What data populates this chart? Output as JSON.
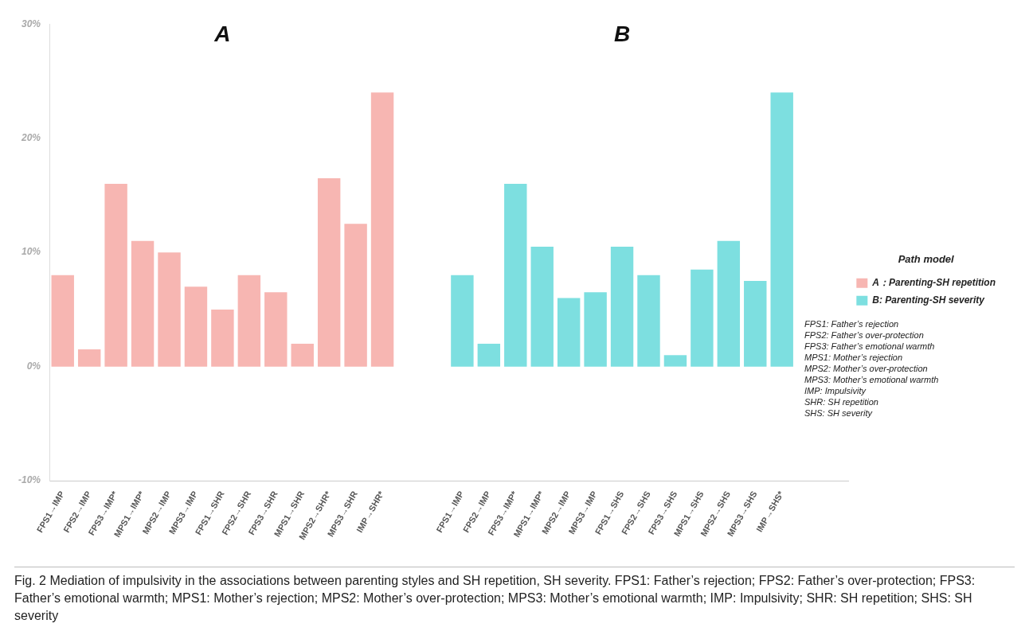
{
  "chart_data": {
    "type": "bar",
    "legend_title": "Path model",
    "legend": "right",
    "categories": [
      "FPS1→IMP",
      "FPS2→IMP",
      "FPS3→IMP*",
      "MPS1→IMP*",
      "MPS2→IMP",
      "MPS3→IMP",
      "FPS1→SHR",
      "FPS2→SHR",
      "FPS3→SHR",
      "MPS1→SHR",
      "MPS2→SHR*",
      "MPS3→SHR",
      "IMP→SHR*",
      null,
      null,
      "FPS1→IMP",
      "FPS2→IMP",
      "FPS3→IMP*",
      "MPS1→IMP*",
      "MPS2→IMP",
      "MPS3→IMP",
      "FPS1→SHS",
      "FPS2→SHS",
      "FPS3→SHS",
      "MPS1→SHS",
      "MPS2→SHS",
      "MPS3→SHS",
      "IMP→SHS*",
      null,
      null
    ],
    "series": [
      {
        "name": "A：Parenting-SH repetition",
        "color": "#f7b6b2",
        "values": [
          8,
          1.5,
          16,
          11,
          10,
          7,
          5,
          8,
          6.5,
          2,
          16.5,
          12.5,
          24,
          null,
          null,
          null,
          null,
          null,
          null,
          null,
          null,
          null,
          null,
          null,
          null,
          null,
          null,
          null,
          null,
          null
        ]
      },
      {
        "name": "B: Parenting-SH severity",
        "color": "#7ddfe0",
        "values": [
          null,
          null,
          null,
          null,
          null,
          null,
          null,
          null,
          null,
          null,
          null,
          null,
          null,
          null,
          null,
          8,
          2,
          16,
          10.5,
          6,
          6.5,
          10.5,
          8,
          1,
          8.5,
          11,
          7.5,
          24,
          null,
          null
        ]
      }
    ],
    "ylim": [
      -10,
      30
    ],
    "yticks": [
      {
        "value": -10,
        "label": "-10%"
      },
      {
        "value": 0,
        "label": "0%"
      },
      {
        "value": 10,
        "label": "10%"
      },
      {
        "value": 20,
        "label": "20%"
      },
      {
        "value": 30,
        "label": "30%"
      }
    ],
    "annotations": [
      "A",
      "B",
      "FPS1: Father’s rejection",
      "FPS2: Father’s over-protection",
      "FPS3: Father’s emotional warmth",
      "MPS1: Mother’s rejection",
      "MPS2: Mother’s over-protection",
      "MPS3: Mother’s emotional warmth",
      "IMP: Impulsivity",
      "SHR: SH repetition",
      "SHS: SH severity",
      "Fig. 2 Mediation of impulsivity in the associations between parenting styles and SH repetition, SH severity. FPS1: Father’s rejection; FPS2: Father’s over-protection; FPS3: Father’s emotional warmth; MPS1: Mother’s rejection; MPS2: Mother’s over-protection; MPS3: Mother’s emotional warmth; IMP: Impulsivity; SHR: SH repetition; SHS: SH severity"
    ]
  }
}
